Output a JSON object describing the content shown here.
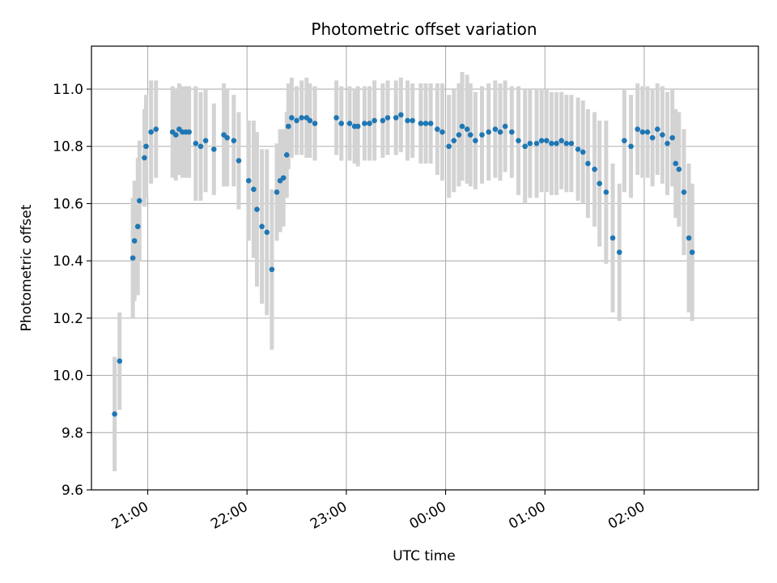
{
  "chart_data": {
    "type": "scatter",
    "title": "Photometric offset variation",
    "xlabel": "UTC time",
    "ylabel": "Photometric offset",
    "x_ticks": [
      "21:00",
      "22:00",
      "23:00",
      "00:00",
      "01:00",
      "02:00"
    ],
    "y_ticks": [
      "9.6",
      "9.8",
      "10.0",
      "10.2",
      "10.4",
      "10.6",
      "10.8",
      "11.0"
    ],
    "xlim": [
      "20:26",
      "03:09"
    ],
    "ylim": [
      9.6,
      11.15
    ],
    "grid": true,
    "colors": {
      "points": "#1f77b4",
      "errorbars": "#d3d3d3",
      "grid": "#b0b0b0"
    },
    "series": [
      {
        "x": [
          "20:40",
          "20:43",
          "20:51",
          "20:52",
          "20:54",
          "20:55",
          "20:58",
          "20:59",
          "21:02",
          "21:05",
          "21:15",
          "21:17",
          "21:19",
          "21:21",
          "21:23",
          "21:25",
          "21:29",
          "21:32",
          "21:35",
          "21:40",
          "21:46",
          "21:48",
          "21:52",
          "21:55",
          "22:01",
          "22:04",
          "22:06",
          "22:09",
          "22:12",
          "22:15",
          "22:18",
          "22:20",
          "22:22",
          "22:24",
          "22:25",
          "22:27",
          "22:30",
          "22:33",
          "22:36",
          "22:38",
          "22:41",
          "22:54",
          "22:57",
          "23:02",
          "23:05",
          "23:07",
          "23:11",
          "23:14",
          "23:17",
          "23:22",
          "23:25",
          "23:30",
          "23:33",
          "23:37",
          "23:40",
          "23:45",
          "23:48",
          "23:51",
          "23:55",
          "23:58",
          "00:02",
          "00:05",
          "00:08",
          "00:10",
          "00:13",
          "00:15",
          "00:18",
          "00:22",
          "00:26",
          "00:30",
          "00:33",
          "00:36",
          "00:40",
          "00:44",
          "00:48",
          "00:51",
          "00:55",
          "00:58",
          "01:01",
          "01:04",
          "01:07",
          "01:10",
          "01:13",
          "01:16",
          "01:20",
          "01:23",
          "01:26",
          "01:30",
          "01:33",
          "01:37",
          "01:41",
          "01:45",
          "01:48",
          "01:52",
          "01:56",
          "01:59",
          "02:02",
          "02:05",
          "02:08",
          "02:11",
          "02:14",
          "02:17",
          "02:19",
          "02:21",
          "02:24",
          "02:27",
          "02:29"
        ],
        "y": [
          9.865,
          10.05,
          10.41,
          10.47,
          10.52,
          10.61,
          10.76,
          10.8,
          10.85,
          10.86,
          10.85,
          10.84,
          10.86,
          10.85,
          10.85,
          10.85,
          10.81,
          10.8,
          10.82,
          10.79,
          10.84,
          10.83,
          10.82,
          10.75,
          10.68,
          10.65,
          10.58,
          10.52,
          10.5,
          10.37,
          10.64,
          10.68,
          10.69,
          10.77,
          10.87,
          10.9,
          10.89,
          10.9,
          10.9,
          10.89,
          10.88,
          10.9,
          10.88,
          10.88,
          10.87,
          10.87,
          10.88,
          10.88,
          10.89,
          10.89,
          10.9,
          10.9,
          10.91,
          10.89,
          10.89,
          10.88,
          10.88,
          10.88,
          10.86,
          10.85,
          10.8,
          10.82,
          10.84,
          10.87,
          10.86,
          10.84,
          10.82,
          10.84,
          10.85,
          10.86,
          10.85,
          10.87,
          10.85,
          10.82,
          10.8,
          10.81,
          10.81,
          10.82,
          10.82,
          10.81,
          10.81,
          10.82,
          10.81,
          10.81,
          10.79,
          10.78,
          10.74,
          10.72,
          10.67,
          10.64,
          10.48,
          10.43,
          10.82,
          10.8,
          10.86,
          10.85,
          10.85,
          10.83,
          10.86,
          10.84,
          10.81,
          10.83,
          10.74,
          10.72,
          10.64,
          10.48,
          10.43
        ],
        "err": [
          0.2,
          0.17,
          0.21,
          0.21,
          0.24,
          0.21,
          0.17,
          0.18,
          0.18,
          0.17,
          0.16,
          0.16,
          0.16,
          0.16,
          0.16,
          0.16,
          0.2,
          0.19,
          0.18,
          0.16,
          0.18,
          0.17,
          0.16,
          0.17,
          0.21,
          0.24,
          0.27,
          0.27,
          0.29,
          0.28,
          0.17,
          0.18,
          0.17,
          0.15,
          0.15,
          0.14,
          0.12,
          0.13,
          0.14,
          0.13,
          0.13,
          0.13,
          0.13,
          0.13,
          0.13,
          0.14,
          0.13,
          0.13,
          0.14,
          0.13,
          0.13,
          0.13,
          0.13,
          0.14,
          0.13,
          0.14,
          0.14,
          0.14,
          0.16,
          0.17,
          0.18,
          0.18,
          0.18,
          0.19,
          0.19,
          0.18,
          0.17,
          0.17,
          0.17,
          0.17,
          0.17,
          0.16,
          0.16,
          0.19,
          0.2,
          0.19,
          0.19,
          0.18,
          0.18,
          0.18,
          0.18,
          0.17,
          0.17,
          0.17,
          0.18,
          0.18,
          0.19,
          0.2,
          0.22,
          0.25,
          0.26,
          0.24,
          0.18,
          0.18,
          0.16,
          0.16,
          0.16,
          0.17,
          0.16,
          0.17,
          0.18,
          0.17,
          0.19,
          0.2,
          0.22,
          0.26,
          0.24
        ]
      }
    ]
  }
}
